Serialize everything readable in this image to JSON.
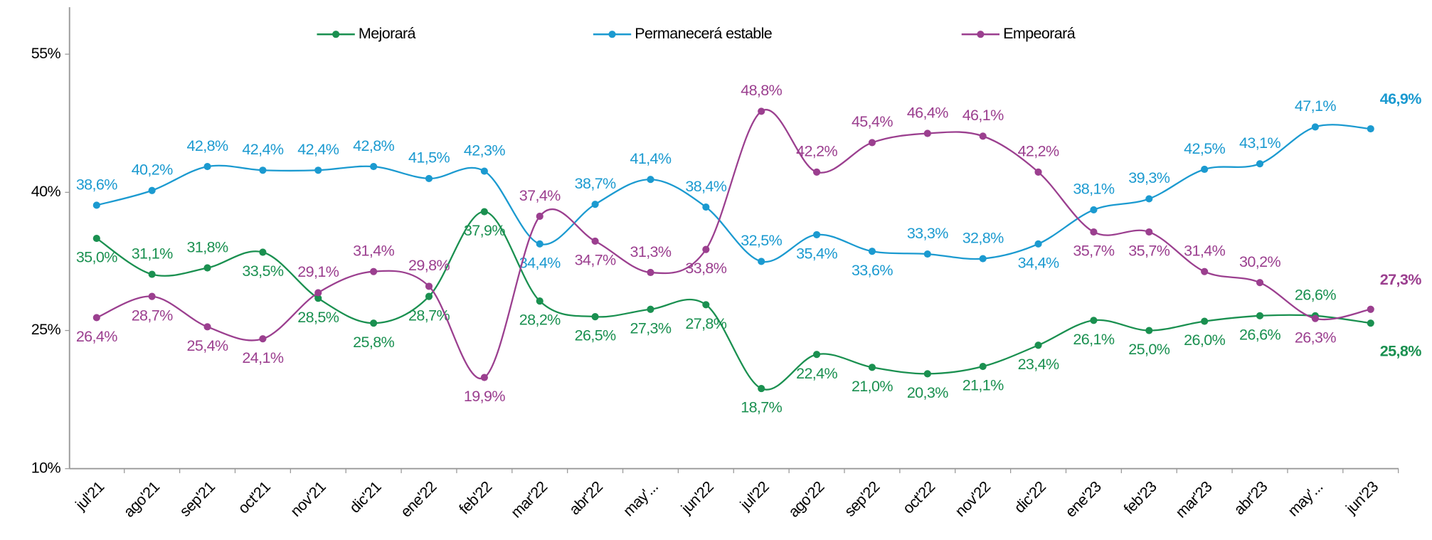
{
  "chart_data": {
    "type": "line",
    "categories": [
      "jul'21",
      "ago'21",
      "sep'21",
      "oct'21",
      "nov'21",
      "dic'21",
      "ene'22",
      "feb'22",
      "mar'22",
      "abr'22",
      "may'...",
      "jun'22",
      "jul'22",
      "ago'22",
      "sep'22",
      "oct'22",
      "nov'22",
      "dic'22",
      "ene'23",
      "feb'23",
      "mar'23",
      "abr'23",
      "may'...",
      "jun'23"
    ],
    "series": [
      {
        "name": "Mejorará",
        "color": "#1a9050",
        "values": [
          35.0,
          31.1,
          31.8,
          33.5,
          28.5,
          25.8,
          28.7,
          37.9,
          28.2,
          26.5,
          27.3,
          27.8,
          18.7,
          22.4,
          21.0,
          20.3,
          21.1,
          23.4,
          26.1,
          25.0,
          26.0,
          26.6,
          26.6,
          25.8
        ],
        "value_labels": [
          "35,0%",
          "31,1%",
          "31,8%",
          "33,5%",
          "28,5%",
          "25,8%",
          "28,7%",
          "37,9%",
          "28,2%",
          "26,5%",
          "27,3%",
          "27,8%",
          "18,7%",
          "22,4%",
          "21,0%",
          "20,3%",
          "21,1%",
          "23,4%",
          "26,1%",
          "25,0%",
          "26,0%",
          "26,6%",
          "26,6%",
          "25,8%"
        ]
      },
      {
        "name": "Permanecerá estable",
        "color": "#1b9ad0",
        "values": [
          38.6,
          40.2,
          42.8,
          42.4,
          42.4,
          42.8,
          41.5,
          42.3,
          34.4,
          38.7,
          41.4,
          38.4,
          32.5,
          35.4,
          33.6,
          33.3,
          32.8,
          34.4,
          38.1,
          39.3,
          42.5,
          43.1,
          47.1,
          46.9
        ],
        "value_labels": [
          "38,6%",
          "40,2%",
          "42,8%",
          "42,4%",
          "42,4%",
          "42,8%",
          "41,5%",
          "42,3%",
          "34,4%",
          "38,7%",
          "41,4%",
          "38,4%",
          "32,5%",
          "35,4%",
          "33,6%",
          "33,3%",
          "32,8%",
          "34,4%",
          "38,1%",
          "39,3%",
          "42,5%",
          "43,1%",
          "47,1%",
          "46,9%"
        ]
      },
      {
        "name": "Empeorará",
        "color": "#9b3f8f",
        "values": [
          26.4,
          28.7,
          25.4,
          24.1,
          29.1,
          31.4,
          29.8,
          19.9,
          37.4,
          34.7,
          31.3,
          33.8,
          48.8,
          42.2,
          45.4,
          46.4,
          46.1,
          42.2,
          35.7,
          35.7,
          31.4,
          30.2,
          26.3,
          27.3
        ],
        "value_labels": [
          "26,4%",
          "28,7%",
          "25,4%",
          "24,1%",
          "29,1%",
          "31,4%",
          "29,8%",
          "19,9%",
          "37,4%",
          "34,7%",
          "31,3%",
          "33,8%",
          "48,8%",
          "42,2%",
          "45,4%",
          "46,4%",
          "46,1%",
          "42,2%",
          "35,7%",
          "35,7%",
          "31,4%",
          "30,2%",
          "26,3%",
          "27,3%"
        ]
      }
    ],
    "ylim": [
      10,
      55
    ],
    "yticks": [
      {
        "value": 10,
        "label": "10%"
      },
      {
        "value": 25,
        "label": "25%"
      },
      {
        "value": 40,
        "label": "40%"
      },
      {
        "value": 55,
        "label": "55%"
      }
    ],
    "legend": "top"
  }
}
